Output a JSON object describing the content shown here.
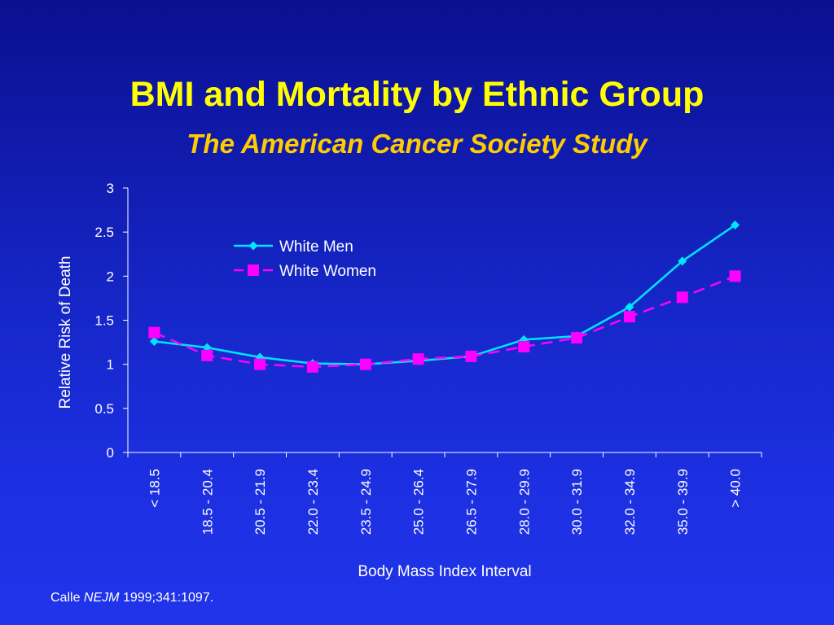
{
  "slide": {
    "title": "BMI and Mortality by Ethnic Group",
    "subtitle": "The American Cancer Society Study",
    "citation_author": "Calle",
    "citation_journal": "NEJM",
    "citation_ref": "1999;341:1097.",
    "colors": {
      "title": "#ffff00",
      "subtitle": "#ffcc00",
      "axis": "#ffffff",
      "background_top": "#0b0f8f",
      "background_bottom": "#2034ea"
    }
  },
  "chart_data": {
    "type": "line",
    "xlabel": "Body Mass Index Interval",
    "ylabel": "Relative Risk of Death",
    "ylim": [
      0,
      3
    ],
    "yticks": [
      0,
      0.5,
      1,
      1.5,
      2,
      2.5,
      3
    ],
    "ytick_labels": [
      "0",
      "0.5",
      "1",
      "1.5",
      "2",
      "2.5",
      "3"
    ],
    "grid": false,
    "legend_position": "upper-left-inside",
    "categories": [
      "< 18.5",
      "18.5 - 20.4",
      "20.5 - 21.9",
      "22.0 - 23.4",
      "23.5 - 24.9",
      "25.0 - 26.4",
      "26.5 - 27.9",
      "28.0 - 29.9",
      "30.0 - 31.9",
      "32.0 - 34.9",
      "35.0 - 39.9",
      "> 40.0"
    ],
    "series": [
      {
        "name": "White Men",
        "color": "#00e5ff",
        "marker": "diamond",
        "dash": "solid",
        "values": [
          1.26,
          1.19,
          1.08,
          1.01,
          1.0,
          1.04,
          1.09,
          1.28,
          1.32,
          1.65,
          2.17,
          2.58
        ]
      },
      {
        "name": "White Women",
        "color": "#ff00ff",
        "marker": "square",
        "dash": "dashed",
        "values": [
          1.36,
          1.1,
          1.0,
          0.97,
          1.0,
          1.06,
          1.09,
          1.2,
          1.3,
          1.54,
          1.76,
          2.0
        ]
      }
    ]
  }
}
